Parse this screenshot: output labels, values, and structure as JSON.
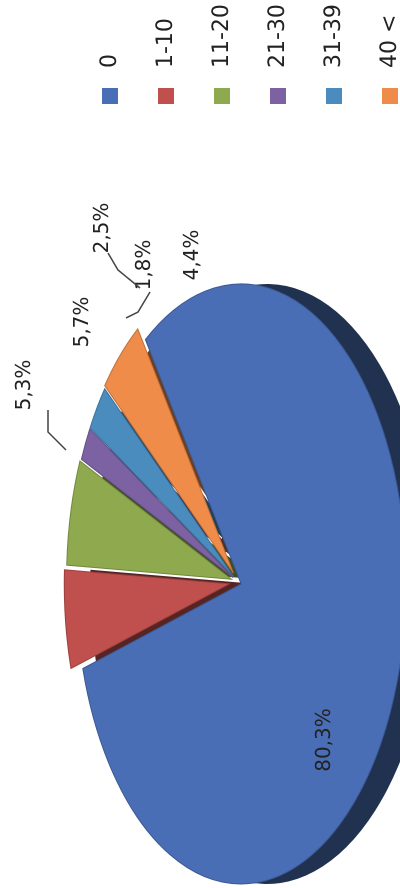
{
  "chart_data": {
    "type": "pie",
    "title": "",
    "legend_position": "right",
    "categories": [
      "0",
      "1-10",
      "11-20",
      "21-30",
      "31-39",
      "40 <"
    ],
    "values": [
      80.3,
      5.3,
      5.7,
      1.8,
      2.5,
      4.4
    ],
    "data_labels": [
      "80,3%",
      "5,3%",
      "5,7%",
      "1,8%",
      "2,5%",
      "4,4%"
    ],
    "colors": [
      "#4a6eb5",
      "#c0504d",
      "#8faa4e",
      "#7d62a3",
      "#4b8cbf",
      "#f08c4a"
    ],
    "extra_dark_slice_color": "#4a3226"
  }
}
